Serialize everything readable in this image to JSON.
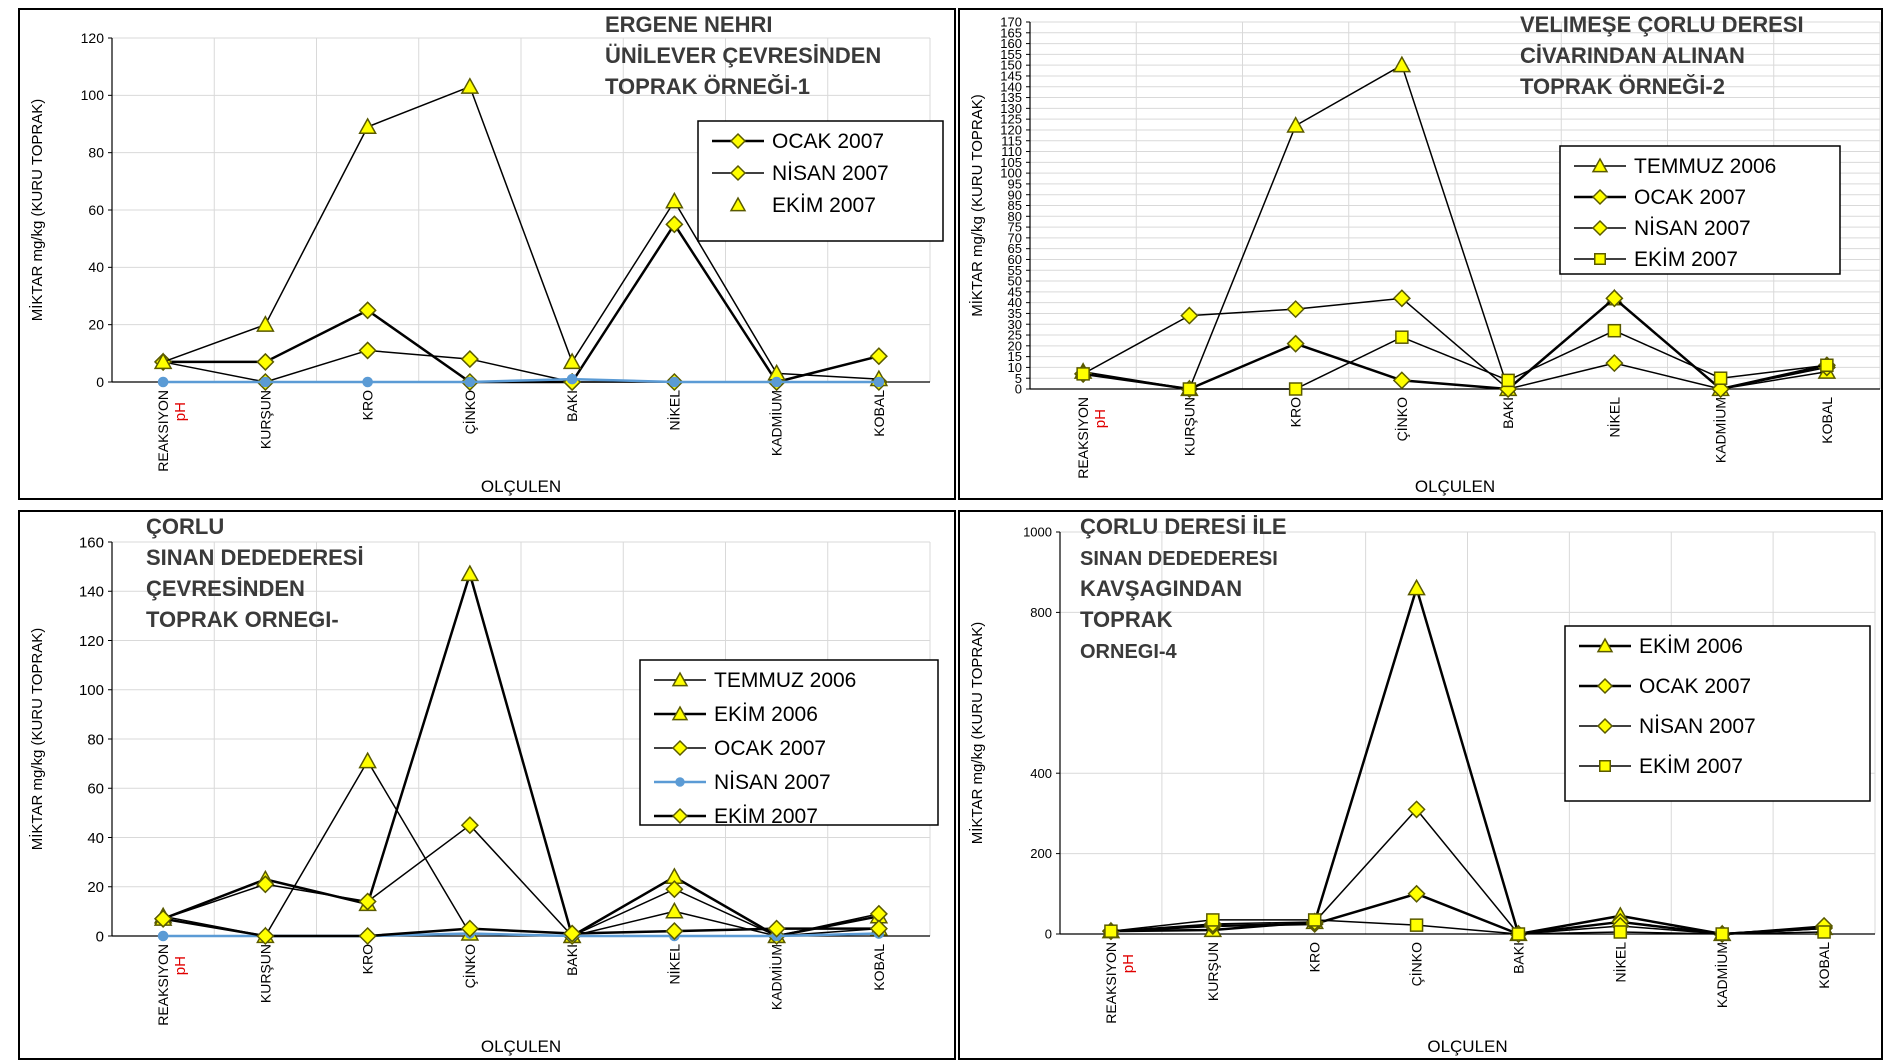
{
  "colors": {
    "marker_fill": "#ffff00",
    "marker_stroke": "#5a5a00",
    "line": "#000000",
    "blue_series": "#5b9bd5",
    "ph_label": "#e00000",
    "grid": "#d9d9d9"
  },
  "categories": [
    "REAKSIYON",
    "KURŞUN",
    "KRO",
    "ÇİNKO",
    "BAKI",
    "NİKEL",
    "KADMİUM",
    "KOBAL"
  ],
  "ph_label": "pH",
  "xlabel": "OLÇULEN",
  "ylabel": "MİKTAR mg/kg (KURU TOPRAK)",
  "chart_data": [
    {
      "type": "line",
      "title": [
        "ERGENE NEHRI",
        "ÜNİLEVER ÇEVRESİNDEN",
        "TOPRAK ÖRNEĞİ-1"
      ],
      "ylim": [
        0,
        120
      ],
      "yticks": [
        0,
        20,
        40,
        60,
        80,
        100,
        120
      ],
      "legend_position": "upper-right",
      "legend": [
        {
          "label": "OCAK 2007",
          "marker": "diamond",
          "line": true
        },
        {
          "label": "NİSAN 2007",
          "marker": "diamond",
          "line": true
        },
        {
          "label": "EKİM 2007",
          "marker": "triangle",
          "line": false
        }
      ],
      "series": [
        {
          "marker": "diamond",
          "color": "#000000",
          "width": 2.5,
          "values": [
            7,
            7,
            25,
            0,
            0,
            55,
            0,
            9
          ]
        },
        {
          "marker": "diamond",
          "color": "#000000",
          "width": 1.5,
          "values": [
            7,
            0,
            11,
            8,
            0,
            0,
            0,
            0
          ]
        },
        {
          "marker": "triangle",
          "color": "#000000",
          "width": 1.5,
          "values": [
            7,
            20,
            89,
            103,
            7,
            63,
            3,
            1
          ]
        },
        {
          "marker": "circle",
          "color": "#5b9bd5",
          "width": 2.5,
          "values": [
            0,
            0,
            0,
            0,
            1,
            0,
            0,
            0
          ]
        }
      ]
    },
    {
      "type": "line",
      "title": [
        "VELIMEŞE ÇORLU DERESI",
        "CİVARINDAN ALINAN",
        "TOPRAK ÖRNEĞİ-2"
      ],
      "ylim": [
        0,
        170
      ],
      "yticks": [
        0,
        5,
        10,
        15,
        20,
        25,
        30,
        35,
        40,
        45,
        50,
        55,
        60,
        65,
        70,
        75,
        80,
        85,
        90,
        95,
        100,
        105,
        110,
        115,
        120,
        125,
        130,
        135,
        140,
        145,
        150,
        155,
        160,
        165,
        170
      ],
      "legend_position": "upper-right",
      "legend": [
        {
          "label": "TEMMUZ 2006",
          "marker": "triangle",
          "line": true
        },
        {
          "label": "OCAK 2007",
          "marker": "diamond",
          "line": true
        },
        {
          "label": "NİSAN 2007",
          "marker": "diamond",
          "line": true
        },
        {
          "label": "EKİM 2007",
          "marker": "square",
          "line": true
        }
      ],
      "series": [
        {
          "marker": "triangle",
          "color": "#000000",
          "width": 1.5,
          "values": [
            8,
            0,
            122,
            150,
            0,
            42,
            0,
            8
          ]
        },
        {
          "marker": "diamond",
          "color": "#000000",
          "width": 2.5,
          "values": [
            7,
            0,
            21,
            4,
            0,
            42,
            0,
            11
          ]
        },
        {
          "marker": "diamond",
          "color": "#000000",
          "width": 1.5,
          "values": [
            7,
            34,
            37,
            42,
            0,
            12,
            0,
            10
          ]
        },
        {
          "marker": "square",
          "color": "#000000",
          "width": 1.5,
          "values": [
            7,
            0,
            0,
            24,
            4,
            27,
            5,
            11
          ]
        }
      ]
    },
    {
      "type": "line",
      "title": [
        "ÇORLU",
        "SINAN DEDEDERESİ",
        "ÇEVRESİNDEN",
        "TOPRAK ORNEGI-"
      ],
      "ylim": [
        0,
        160
      ],
      "yticks": [
        0,
        20,
        40,
        60,
        80,
        100,
        120,
        140,
        160
      ],
      "legend_position": "right",
      "legend": [
        {
          "label": "TEMMUZ 2006",
          "marker": "triangle",
          "line": true
        },
        {
          "label": "EKİM 2006",
          "marker": "triangle",
          "line": true
        },
        {
          "label": "OCAK 2007",
          "marker": "diamond",
          "line": true
        },
        {
          "label": "NİSAN 2007",
          "marker": "circle",
          "line": true
        },
        {
          "label": "EKİM 2007",
          "marker": "diamond",
          "line": true
        }
      ],
      "series": [
        {
          "marker": "triangle",
          "color": "#000000",
          "width": 1.5,
          "values": [
            8,
            0,
            71,
            1,
            0,
            10,
            0,
            3
          ]
        },
        {
          "marker": "triangle",
          "color": "#000000",
          "width": 2.5,
          "values": [
            7,
            23,
            13,
            147,
            0,
            24,
            0,
            8
          ]
        },
        {
          "marker": "diamond",
          "color": "#000000",
          "width": 1.5,
          "values": [
            7,
            21,
            14,
            45,
            0,
            19,
            0,
            9
          ]
        },
        {
          "marker": "circle",
          "color": "#5b9bd5",
          "width": 2.5,
          "values": [
            0,
            0,
            0,
            1,
            0,
            0,
            0,
            1
          ]
        },
        {
          "marker": "diamond",
          "color": "#000000",
          "width": 2.5,
          "values": [
            7,
            0,
            0,
            3,
            1,
            2,
            3,
            3
          ]
        }
      ]
    },
    {
      "type": "line",
      "title": [
        "ÇORLU DERESİ İLE",
        "SINAN DEDEDERESI",
        "KAVŞAGINDAN",
        "TOPRAK",
        "ORNEGI-4"
      ],
      "ylim": [
        0,
        1000
      ],
      "yticks": [
        0,
        200,
        400,
        800,
        1000
      ],
      "legend_position": "right",
      "legend": [
        {
          "label": "EKİM 2006",
          "marker": "triangle",
          "line": true
        },
        {
          "label": "OCAK 2007",
          "marker": "diamond",
          "line": true
        },
        {
          "label": "NİSAN 2007",
          "marker": "diamond",
          "line": true
        },
        {
          "label": "EKİM 2007",
          "marker": "square",
          "line": true
        }
      ],
      "series": [
        {
          "marker": "triangle",
          "color": "#000000",
          "width": 2.5,
          "values": [
            7,
            10,
            30,
            860,
            0,
            45,
            0,
            15
          ]
        },
        {
          "marker": "diamond",
          "color": "#000000",
          "width": 2.5,
          "values": [
            7,
            20,
            25,
            100,
            0,
            30,
            0,
            15
          ]
        },
        {
          "marker": "diamond",
          "color": "#000000",
          "width": 1.5,
          "values": [
            7,
            25,
            30,
            310,
            0,
            20,
            0,
            20
          ]
        },
        {
          "marker": "square",
          "color": "#000000",
          "width": 1.5,
          "values": [
            7,
            35,
            35,
            22,
            0,
            5,
            0,
            5
          ]
        }
      ]
    }
  ]
}
